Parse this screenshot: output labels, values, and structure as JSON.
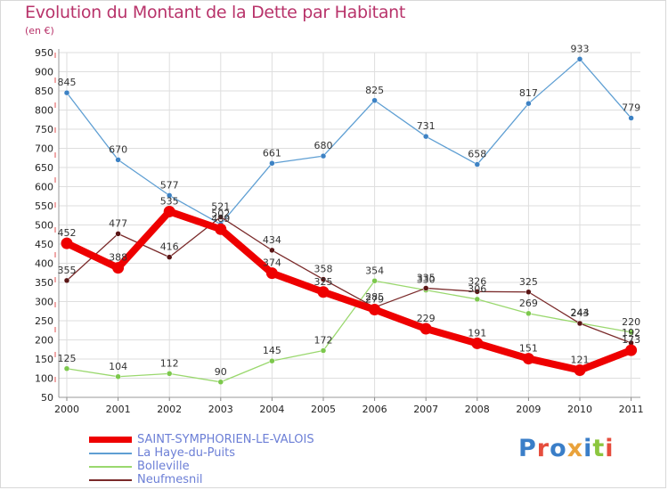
{
  "title": "Evolution du Montant de la Dette par Habitant",
  "unit": "(en €)",
  "logo": {
    "text": "Proxiti",
    "colors": [
      "#3a7ec8",
      "#e64d3d",
      "#3a7ec8",
      "#e9a23b",
      "#3a7ec8",
      "#8cc63f",
      "#e64d3d"
    ]
  },
  "chart_data": {
    "type": "line",
    "x": [
      "2000",
      "2001",
      "2002",
      "2003",
      "2004",
      "2005",
      "2006",
      "2007",
      "2008",
      "2009",
      "2010",
      "2011"
    ],
    "ylim": [
      50,
      950
    ],
    "yticks": [
      50,
      100,
      150,
      200,
      250,
      300,
      350,
      400,
      450,
      500,
      550,
      600,
      650,
      700,
      750,
      800,
      850,
      900,
      950
    ],
    "grid": true,
    "legend_position": "bottom-left",
    "series": [
      {
        "name": "La Haye-du-Puits",
        "color": "#5f9fd3",
        "marker": "#3d82c4",
        "values": [
          845,
          670,
          577,
          502,
          661,
          680,
          825,
          731,
          658,
          817,
          933,
          779
        ]
      },
      {
        "name": "Bolleville",
        "color": "#9ad86e",
        "marker": "#7cc84c",
        "values": [
          125,
          104,
          112,
          90,
          145,
          172,
          354,
          330,
          306,
          269,
          244,
          220
        ]
      },
      {
        "name": "Neufmesnil",
        "color": "#7a2a2a",
        "marker": "#5a1515",
        "values": [
          355,
          477,
          416,
          521,
          434,
          358,
          285,
          335,
          326,
          325,
          243,
          192
        ]
      },
      {
        "name": "SAINT-SYMPHORIEN-LE-VALOIS",
        "color": "#ee0000",
        "marker": "#ee0000",
        "values": [
          452,
          388,
          535,
          489,
          374,
          325,
          279,
          229,
          191,
          151,
          121,
          173
        ]
      }
    ]
  }
}
